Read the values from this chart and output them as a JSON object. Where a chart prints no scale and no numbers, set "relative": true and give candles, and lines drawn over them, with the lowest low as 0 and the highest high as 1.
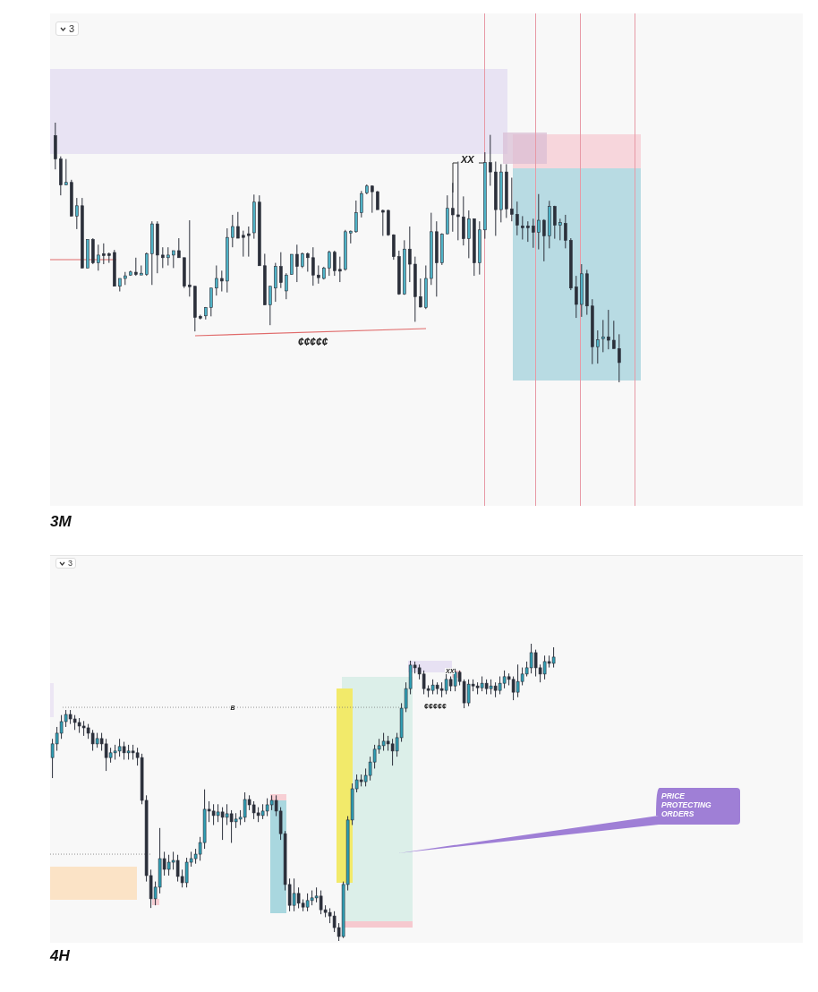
{
  "chart_data": [
    {
      "type": "candlestick",
      "title": "3M",
      "relative": true,
      "annotations": [
        "3",
        "XX",
        "¢¢¢¢¢"
      ],
      "categories": [
        null,
        null,
        null,
        null,
        null,
        null,
        null,
        null,
        null,
        null,
        null,
        null,
        null,
        null,
        null,
        null,
        null,
        null,
        null,
        null,
        null,
        null,
        null,
        null,
        null,
        null,
        null,
        null,
        null,
        null,
        null,
        null,
        null,
        null,
        null,
        null,
        null,
        null,
        null,
        null,
        null,
        null,
        null,
        null,
        null,
        null,
        null,
        null,
        null,
        null,
        null,
        null,
        null,
        null,
        null,
        null,
        null,
        null,
        null,
        null,
        null,
        null,
        null,
        null,
        null,
        null,
        null,
        null,
        null,
        null,
        null,
        null,
        null,
        null,
        null,
        null,
        null,
        null,
        null,
        null,
        null,
        null,
        null,
        null,
        null,
        null,
        null,
        null,
        null,
        null,
        null,
        null,
        null,
        null,
        null,
        null,
        null,
        null,
        null,
        null,
        null,
        null,
        null,
        null,
        null,
        null
      ],
      "ohlc": [
        [
          0.95,
          1.0,
          0.82,
          0.86
        ],
        [
          0.86,
          0.87,
          0.72,
          0.76
        ],
        [
          0.76,
          0.86,
          0.76,
          0.77
        ],
        [
          0.77,
          0.78,
          0.64,
          0.64
        ],
        [
          0.64,
          0.71,
          0.59,
          0.68
        ],
        [
          0.68,
          0.71,
          0.44,
          0.44
        ],
        [
          0.44,
          0.55,
          0.44,
          0.55
        ],
        [
          0.55,
          0.555,
          0.455,
          0.46
        ],
        [
          0.46,
          0.53,
          0.43,
          0.49
        ],
        [
          0.495,
          0.535,
          0.455,
          0.49
        ],
        [
          0.495,
          0.5,
          0.46,
          0.49
        ],
        [
          0.5,
          0.51,
          0.37,
          0.37
        ],
        [
          0.37,
          0.4,
          0.35,
          0.4
        ],
        [
          0.4,
          0.425,
          0.375,
          0.41
        ],
        [
          0.413,
          0.43,
          0.41,
          0.425
        ],
        [
          0.424,
          0.48,
          0.41,
          0.415
        ],
        [
          0.415,
          0.45,
          0.415,
          0.42
        ],
        [
          0.415,
          0.5,
          0.41,
          0.495
        ],
        [
          0.495,
          0.62,
          0.375,
          0.61
        ],
        [
          0.61,
          0.62,
          0.42,
          0.49
        ],
        [
          0.49,
          0.52,
          0.44,
          0.48
        ],
        [
          0.48,
          0.52,
          0.45,
          0.49
        ],
        [
          0.49,
          0.507,
          0.44,
          0.507
        ],
        [
          0.507,
          0.555,
          0.48,
          0.48
        ],
        [
          0.48,
          0.48,
          0.363,
          0.37
        ],
        [
          0.375,
          0.624,
          0.33,
          0.37
        ],
        [
          0.37,
          0.37,
          0.196,
          0.25
        ],
        [
          0.254,
          0.26,
          0.242,
          0.252
        ],
        [
          0.256,
          0.29,
          0.242,
          0.288
        ],
        [
          0.288,
          0.363,
          0.254,
          0.363
        ],
        [
          0.363,
          0.45,
          0.334,
          0.4
        ],
        [
          0.4,
          0.43,
          0.35,
          0.39
        ],
        [
          0.39,
          0.593,
          0.346,
          0.558
        ],
        [
          0.558,
          0.645,
          0.52,
          0.6
        ],
        [
          0.6,
          0.656,
          0.555,
          0.555
        ],
        [
          0.566,
          0.584,
          0.484,
          0.558
        ],
        [
          0.572,
          0.6,
          0.484,
          0.568
        ],
        [
          0.576,
          0.723,
          0.553,
          0.694
        ],
        [
          0.694,
          0.72,
          0.449,
          0.449
        ],
        [
          0.449,
          0.495,
          0.298,
          0.298
        ],
        [
          0.298,
          0.37,
          0.22,
          0.37
        ],
        [
          0.363,
          0.46,
          0.31,
          0.446
        ],
        [
          0.446,
          0.501,
          0.363,
          0.384
        ],
        [
          0.352,
          0.42,
          0.32,
          0.413
        ],
        [
          0.415,
          0.493,
          0.415,
          0.493
        ],
        [
          0.493,
          0.53,
          0.386,
          0.446
        ],
        [
          0.446,
          0.5,
          0.44,
          0.495
        ],
        [
          0.495,
          0.5,
          0.426,
          0.48
        ],
        [
          0.48,
          0.52,
          0.372,
          0.413
        ],
        [
          0.413,
          0.45,
          0.38,
          0.403
        ],
        [
          0.4,
          0.445,
          0.396,
          0.44
        ],
        [
          0.44,
          0.507,
          0.41,
          0.501
        ],
        [
          0.501,
          0.507,
          0.41,
          0.43
        ],
        [
          0.435,
          0.484,
          0.386,
          0.43
        ],
        [
          0.435,
          0.587,
          0.43,
          0.58
        ],
        [
          0.58,
          0.585,
          0.535,
          0.582
        ],
        [
          0.58,
          0.7,
          0.576,
          0.653
        ],
        [
          0.653,
          0.737,
          0.635,
          0.727
        ],
        [
          0.73,
          0.762,
          0.724,
          0.756
        ],
        [
          0.756,
          0.758,
          0.653,
          0.734
        ],
        [
          0.734,
          0.737,
          0.665,
          0.665
        ],
        [
          0.662,
          0.665,
          0.564,
          0.66
        ],
        [
          0.662,
          0.665,
          0.564,
          0.568
        ],
        [
          0.568,
          0.57,
          0.472,
          0.484
        ],
        [
          0.484,
          0.507,
          0.337,
          0.34
        ],
        [
          0.34,
          0.547,
          0.337,
          0.513
        ],
        [
          0.513,
          0.6,
          0.386,
          0.455
        ],
        [
          0.455,
          0.484,
          0.233,
          0.33
        ],
        [
          0.33,
          0.4,
          0.288,
          0.29
        ],
        [
          0.288,
          0.45,
          0.282,
          0.4
        ],
        [
          0.4,
          0.653,
          0.375,
          0.58
        ],
        [
          0.58,
          0.62,
          0.33,
          0.46
        ],
        [
          0.46,
          0.574,
          0.452,
          0.57
        ],
        [
          0.572,
          0.72,
          0.57,
          0.67
        ],
        [
          0.67,
          0.768,
          0.58,
          0.645
        ],
        [
          0.645,
          0.85,
          0.547,
          0.64
        ],
        [
          0.637,
          0.716,
          0.527,
          0.553
        ],
        [
          0.553,
          0.662,
          0.478,
          0.63
        ],
        [
          0.63,
          0.63,
          0.41,
          0.46
        ],
        [
          0.46,
          0.62,
          0.415,
          0.587
        ],
        [
          0.587,
          0.886,
          0.553,
          0.846
        ],
        [
          0.846,
          0.953,
          0.757,
          0.81
        ],
        [
          0.81,
          0.85,
          0.564,
          0.665
        ],
        [
          0.665,
          0.84,
          0.616,
          0.81
        ],
        [
          0.81,
          0.84,
          0.633,
          0.668
        ],
        [
          0.668,
          0.788,
          0.62,
          0.647
        ],
        [
          0.647,
          0.696,
          0.566,
          0.605
        ],
        [
          0.602,
          0.64,
          0.55,
          0.6
        ],
        [
          0.602,
          0.62,
          0.541,
          0.598
        ],
        [
          0.602,
          0.63,
          0.518,
          0.578
        ],
        [
          0.578,
          0.725,
          0.512,
          0.624
        ],
        [
          0.624,
          0.628,
          0.466,
          0.564
        ],
        [
          0.564,
          0.699,
          0.516,
          0.677
        ],
        [
          0.677,
          0.68,
          0.553,
          0.605
        ],
        [
          0.605,
          0.63,
          0.547,
          0.615
        ],
        [
          0.612,
          0.645,
          0.516,
          0.547
        ],
        [
          0.547,
          0.555,
          0.355,
          0.363
        ],
        [
          0.367,
          0.41,
          0.248,
          0.3
        ],
        [
          0.3,
          0.455,
          0.252,
          0.418
        ],
        [
          0.418,
          0.433,
          0.26,
          0.294
        ],
        [
          0.294,
          0.32,
          0.07,
          0.137
        ],
        [
          0.137,
          0.2,
          0.072,
          0.164
        ],
        [
          0.171,
          0.24,
          0.116,
          0.175
        ],
        [
          0.175,
          0.279,
          0.127,
          0.162
        ],
        [
          0.162,
          0.237,
          0.13,
          0.13
        ],
        [
          0.13,
          0.185,
          0.0,
          0.076
        ]
      ]
    },
    {
      "type": "candlestick",
      "title": "4H",
      "relative": true,
      "annotations": [
        "3",
        "XX",
        "¢¢¢¢¢",
        "PRICE PROTECTING ORDERS"
      ],
      "ref_lines": [
        {
          "axis": "y",
          "value": 0.786,
          "label": "B",
          "line_style": "dotted"
        },
        {
          "axis": "y",
          "value": 0.292,
          "line_style": "dotted"
        }
      ],
      "categories": [
        null,
        null,
        null,
        null,
        null,
        null,
        null,
        null,
        null,
        null,
        null,
        null,
        null,
        null,
        null,
        null,
        null,
        null,
        null,
        null,
        null,
        null,
        null,
        null,
        null,
        null,
        null,
        null,
        null,
        null,
        null,
        null,
        null,
        null,
        null,
        null,
        null,
        null,
        null,
        null,
        null,
        null,
        null,
        null,
        null,
        null,
        null,
        null,
        null,
        null,
        null,
        null,
        null,
        null,
        null,
        null,
        null,
        null,
        null,
        null,
        null,
        null,
        null,
        null,
        null,
        null,
        null,
        null,
        null,
        null,
        null,
        null,
        null,
        null,
        null,
        null,
        null,
        null,
        null,
        null,
        null,
        null,
        null,
        null,
        null,
        null,
        null,
        null,
        null,
        null,
        null,
        null,
        null,
        null,
        null,
        null,
        null,
        null,
        null,
        null,
        null,
        null,
        null,
        null,
        null,
        null,
        null,
        null,
        null,
        null,
        null,
        null,
        null
      ],
      "ohlc": [
        [
          0.617,
          0.68,
          0.548,
          0.663
        ],
        [
          0.663,
          0.72,
          0.64,
          0.699
        ],
        [
          0.699,
          0.76,
          0.68,
          0.738
        ],
        [
          0.738,
          0.777,
          0.72,
          0.762
        ],
        [
          0.762,
          0.777,
          0.73,
          0.747
        ],
        [
          0.747,
          0.76,
          0.71,
          0.735
        ],
        [
          0.735,
          0.75,
          0.7,
          0.723
        ],
        [
          0.723,
          0.74,
          0.69,
          0.717
        ],
        [
          0.717,
          0.73,
          0.68,
          0.699
        ],
        [
          0.699,
          0.71,
          0.64,
          0.663
        ],
        [
          0.663,
          0.7,
          0.65,
          0.681
        ],
        [
          0.681,
          0.7,
          0.64,
          0.663
        ],
        [
          0.663,
          0.68,
          0.572,
          0.617
        ],
        [
          0.617,
          0.65,
          0.6,
          0.633
        ],
        [
          0.633,
          0.66,
          0.61,
          0.639
        ],
        [
          0.639,
          0.68,
          0.62,
          0.654
        ],
        [
          0.654,
          0.67,
          0.61,
          0.633
        ],
        [
          0.633,
          0.66,
          0.61,
          0.639
        ],
        [
          0.639,
          0.66,
          0.61,
          0.633
        ],
        [
          0.633,
          0.65,
          0.59,
          0.617
        ],
        [
          0.617,
          0.63,
          0.46,
          0.473
        ],
        [
          0.473,
          0.49,
          0.2,
          0.22
        ],
        [
          0.22,
          0.24,
          0.111,
          0.142
        ],
        [
          0.142,
          0.2,
          0.12,
          0.181
        ],
        [
          0.181,
          0.38,
          0.16,
          0.277
        ],
        [
          0.277,
          0.3,
          0.22,
          0.241
        ],
        [
          0.241,
          0.29,
          0.22,
          0.265
        ],
        [
          0.265,
          0.3,
          0.24,
          0.271
        ],
        [
          0.271,
          0.29,
          0.2,
          0.217
        ],
        [
          0.217,
          0.24,
          0.18,
          0.196
        ],
        [
          0.196,
          0.28,
          0.18,
          0.265
        ],
        [
          0.265,
          0.3,
          0.25,
          0.277
        ],
        [
          0.277,
          0.31,
          0.26,
          0.292
        ],
        [
          0.292,
          0.35,
          0.27,
          0.331
        ],
        [
          0.331,
          0.51,
          0.31,
          0.443
        ],
        [
          0.443,
          0.47,
          0.4,
          0.437
        ],
        [
          0.437,
          0.46,
          0.39,
          0.422
        ],
        [
          0.422,
          0.46,
          0.4,
          0.434
        ],
        [
          0.434,
          0.45,
          0.34,
          0.416
        ],
        [
          0.416,
          0.46,
          0.39,
          0.428
        ],
        [
          0.428,
          0.44,
          0.33,
          0.401
        ],
        [
          0.401,
          0.43,
          0.38,
          0.41
        ],
        [
          0.41,
          0.44,
          0.39,
          0.416
        ],
        [
          0.416,
          0.5,
          0.4,
          0.476
        ],
        [
          0.476,
          0.49,
          0.44,
          0.458
        ],
        [
          0.458,
          0.47,
          0.41,
          0.431
        ],
        [
          0.431,
          0.45,
          0.4,
          0.422
        ],
        [
          0.422,
          0.46,
          0.41,
          0.437
        ],
        [
          0.437,
          0.48,
          0.42,
          0.458
        ],
        [
          0.458,
          0.49,
          0.44,
          0.473
        ],
        [
          0.473,
          0.49,
          0.42,
          0.437
        ],
        [
          0.437,
          0.45,
          0.34,
          0.361
        ],
        [
          0.361,
          0.37,
          0.17,
          0.19
        ],
        [
          0.19,
          0.21,
          0.1,
          0.12
        ],
        [
          0.12,
          0.21,
          0.1,
          0.16
        ],
        [
          0.16,
          0.18,
          0.11,
          0.127
        ],
        [
          0.127,
          0.14,
          0.1,
          0.114
        ],
        [
          0.114,
          0.16,
          0.1,
          0.136
        ],
        [
          0.136,
          0.17,
          0.12,
          0.145
        ],
        [
          0.145,
          0.18,
          0.13,
          0.151
        ],
        [
          0.151,
          0.17,
          0.09,
          0.105
        ],
        [
          0.105,
          0.12,
          0.08,
          0.096
        ],
        [
          0.096,
          0.11,
          0.06,
          0.084
        ],
        [
          0.084,
          0.1,
          0.03,
          0.045
        ],
        [
          0.045,
          0.06,
          0.0,
          0.015
        ],
        [
          0.015,
          0.2,
          0.01,
          0.19
        ],
        [
          0.19,
          0.42,
          0.17,
          0.407
        ],
        [
          0.407,
          0.53,
          0.39,
          0.512
        ],
        [
          0.512,
          0.56,
          0.5,
          0.542
        ],
        [
          0.542,
          0.56,
          0.52,
          0.536
        ],
        [
          0.536,
          0.58,
          0.52,
          0.557
        ],
        [
          0.557,
          0.62,
          0.54,
          0.602
        ],
        [
          0.602,
          0.66,
          0.58,
          0.645
        ],
        [
          0.645,
          0.68,
          0.63,
          0.657
        ],
        [
          0.657,
          0.7,
          0.64,
          0.672
        ],
        [
          0.672,
          0.69,
          0.64,
          0.663
        ],
        [
          0.663,
          0.68,
          0.59,
          0.639
        ],
        [
          0.639,
          0.7,
          0.62,
          0.684
        ],
        [
          0.684,
          0.8,
          0.67,
          0.783
        ],
        [
          0.783,
          0.87,
          0.77,
          0.849
        ],
        [
          0.849,
          0.943,
          0.83,
          0.928
        ],
        [
          0.928,
          0.94,
          0.9,
          0.919
        ],
        [
          0.919,
          0.93,
          0.88,
          0.898
        ],
        [
          0.898,
          0.91,
          0.83,
          0.849
        ],
        [
          0.849,
          0.86,
          0.82,
          0.843
        ],
        [
          0.843,
          0.88,
          0.83,
          0.861
        ],
        [
          0.861,
          0.87,
          0.83,
          0.849
        ],
        [
          0.849,
          0.87,
          0.82,
          0.843
        ],
        [
          0.843,
          0.9,
          0.83,
          0.88
        ],
        [
          0.88,
          0.89,
          0.84,
          0.858
        ],
        [
          0.858,
          0.916,
          0.84,
          0.904
        ],
        [
          0.904,
          0.91,
          0.86,
          0.873
        ],
        [
          0.873,
          0.88,
          0.783,
          0.801
        ],
        [
          0.801,
          0.88,
          0.79,
          0.864
        ],
        [
          0.864,
          0.88,
          0.84,
          0.858
        ],
        [
          0.858,
          0.87,
          0.83,
          0.852
        ],
        [
          0.852,
          0.89,
          0.84,
          0.867
        ],
        [
          0.867,
          0.88,
          0.83,
          0.849
        ],
        [
          0.849,
          0.88,
          0.83,
          0.858
        ],
        [
          0.858,
          0.87,
          0.82,
          0.843
        ],
        [
          0.843,
          0.89,
          0.83,
          0.867
        ],
        [
          0.867,
          0.91,
          0.85,
          0.889
        ],
        [
          0.889,
          0.9,
          0.86,
          0.88
        ],
        [
          0.88,
          0.89,
          0.81,
          0.837
        ],
        [
          0.837,
          0.93,
          0.82,
          0.873
        ],
        [
          0.873,
          0.92,
          0.86,
          0.898
        ],
        [
          0.898,
          0.94,
          0.89,
          0.919
        ],
        [
          0.919,
          1.0,
          0.9,
          0.97
        ],
        [
          0.97,
          0.98,
          0.89,
          0.919
        ],
        [
          0.919,
          0.93,
          0.87,
          0.898
        ],
        [
          0.898,
          0.96,
          0.88,
          0.94
        ],
        [
          0.94,
          0.96,
          0.92,
          0.934
        ],
        [
          0.934,
          0.988,
          0.92,
          0.955
        ]
      ]
    }
  ]
}
